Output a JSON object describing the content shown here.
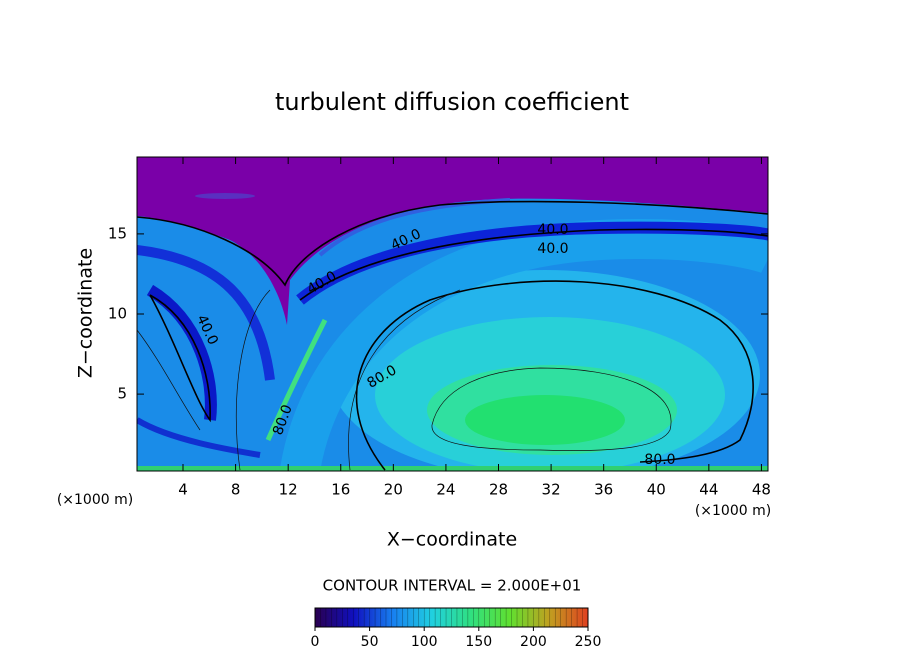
{
  "chart_data": {
    "type": "contour",
    "title": "turbulent diffusion coefficient",
    "xlabel": "X−coordinate",
    "ylabel": "Z−coordinate",
    "x_unit": "(×1000 m)",
    "xlim": [
      0.5,
      48.5
    ],
    "xticks": [
      4,
      8,
      12,
      16,
      20,
      24,
      28,
      32,
      36,
      40,
      44,
      48
    ],
    "ylim": [
      0.2,
      19.8
    ],
    "yticks": [
      5,
      10,
      15
    ],
    "contour_levels": [
      {
        "value": 40,
        "label": "40.0"
      },
      {
        "value": 80,
        "label": "80.0"
      }
    ],
    "contour_interval_text": "CONTOUR INTERVAL = 2.000E+01",
    "colorbar": {
      "lim": [
        0,
        250
      ],
      "ticks": [
        0,
        50,
        100,
        150,
        200,
        250
      ],
      "colors": [
        "#2a0050",
        "#1010c0",
        "#1880f0",
        "#20d0e0",
        "#30e080",
        "#60e030",
        "#c0a020",
        "#e04020"
      ]
    }
  }
}
